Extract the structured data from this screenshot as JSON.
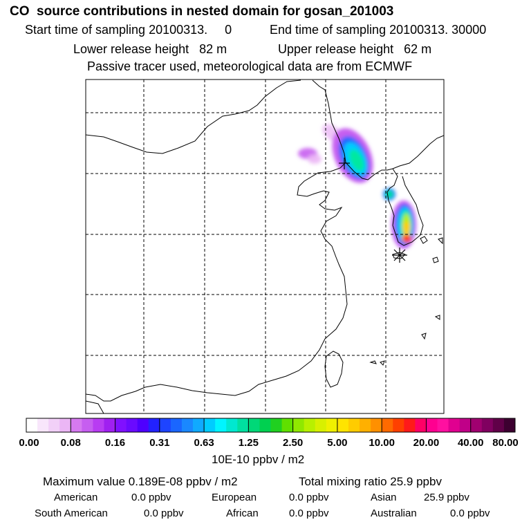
{
  "header": {
    "title": "CO  source contributions in nested domain for gosan_201003",
    "start_label": "Start time of sampling 20100313.     0",
    "end_label": "End time of sampling 20100313. 30000",
    "lower_label": "Lower release height   82 m",
    "upper_label": "Upper release height   62 m",
    "tracer_note": "Passive tracer used, meteorological data are from ECMWF"
  },
  "colorbar": {
    "colors": [
      "#ffffff",
      "#f8e6fb",
      "#f2d0f8",
      "#ebb6f5",
      "#d67af0",
      "#c65ef0",
      "#b83cf2",
      "#a020f0",
      "#8010ff",
      "#6a0aff",
      "#4e00ff",
      "#2222ff",
      "#1e44ff",
      "#1a66ff",
      "#1a88ff",
      "#10aaff",
      "#00ccff",
      "#00f5ff",
      "#00e8d0",
      "#00e0a0",
      "#00d878",
      "#00d050",
      "#20d020",
      "#60e000",
      "#90e800",
      "#b8f000",
      "#d8f000",
      "#f0f000",
      "#ffe400",
      "#ffcc00",
      "#ffb000",
      "#ff9000",
      "#ff6a00",
      "#ff4000",
      "#ff1a1a",
      "#ff0066",
      "#ff0090",
      "#ff10a0",
      "#e00090",
      "#c00088",
      "#a00070",
      "#800060",
      "#600048",
      "#3c0030"
    ],
    "labels": [
      "0.00",
      "0.08",
      "0.16",
      "0.31",
      "0.63",
      "1.25",
      "2.50",
      "5.00",
      "10.00",
      "20.00",
      "40.00",
      "80.00"
    ],
    "units": "10E-10 ppbv / m2"
  },
  "stats": {
    "max_label": "Maximum value  0.189E-08 ppbv / m2",
    "total_label": "Total mixing ratio       25.9 ppbv",
    "american_label": "American",
    "american_value": "0.0 ppbv",
    "european_label": "European",
    "european_value": "0.0 ppbv",
    "asian_label": "Asian",
    "asian_value": "25.9 ppbv",
    "south_american_label": "South American",
    "south_american_value": "0.0 ppbv",
    "african_label": "African",
    "african_value": "0.0 ppbv",
    "australian_label": "Australian",
    "australian_value": "0.0 ppbv"
  },
  "markers": {
    "receptor": "asterisk",
    "max_location": "plus"
  }
}
